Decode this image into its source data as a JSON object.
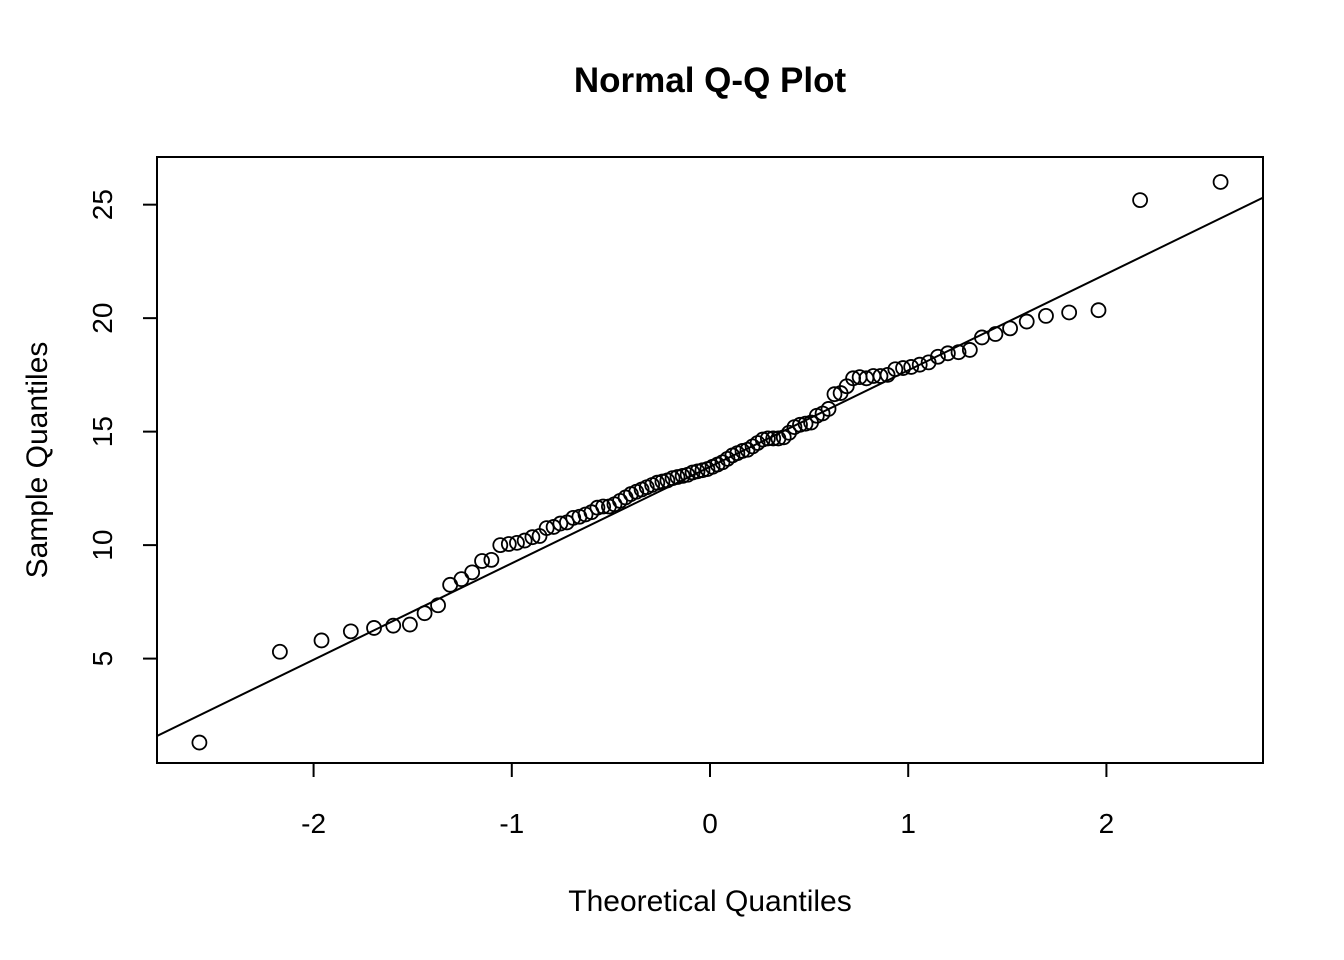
{
  "chart_data": {
    "type": "scatter",
    "title": "Normal Q-Q Plot",
    "xlabel": "Theoretical Quantiles",
    "ylabel": "Sample Quantiles",
    "xlim": [
      -2.79,
      2.79
    ],
    "ylim": [
      0.4,
      27.1
    ],
    "xticks": [
      -2,
      -1,
      0,
      1,
      2
    ],
    "yticks": [
      5,
      10,
      15,
      20,
      25
    ],
    "grid": false,
    "legend": "none",
    "marker": "open-circle",
    "color": "#000000",
    "reference_line": {
      "slope": 4.25,
      "intercept": 13.45
    },
    "x": [
      -2.576,
      -2.17,
      -1.96,
      -1.812,
      -1.695,
      -1.598,
      -1.514,
      -1.44,
      -1.372,
      -1.311,
      -1.254,
      -1.2,
      -1.15,
      -1.103,
      -1.058,
      -1.015,
      -0.974,
      -0.935,
      -0.896,
      -0.86,
      -0.824,
      -0.789,
      -0.755,
      -0.722,
      -0.69,
      -0.659,
      -0.628,
      -0.598,
      -0.568,
      -0.539,
      -0.51,
      -0.482,
      -0.454,
      -0.426,
      -0.399,
      -0.372,
      -0.345,
      -0.319,
      -0.292,
      -0.266,
      -0.24,
      -0.215,
      -0.189,
      -0.164,
      -0.138,
      -0.113,
      -0.088,
      -0.063,
      -0.038,
      -0.013,
      0.013,
      0.038,
      0.063,
      0.088,
      0.113,
      0.138,
      0.164,
      0.189,
      0.215,
      0.24,
      0.266,
      0.292,
      0.319,
      0.345,
      0.372,
      0.399,
      0.426,
      0.454,
      0.482,
      0.51,
      0.539,
      0.568,
      0.598,
      0.628,
      0.659,
      0.69,
      0.722,
      0.755,
      0.789,
      0.824,
      0.86,
      0.896,
      0.935,
      0.974,
      1.015,
      1.058,
      1.103,
      1.15,
      1.2,
      1.254,
      1.311,
      1.372,
      1.44,
      1.514,
      1.598,
      1.695,
      1.812,
      1.96,
      2.17,
      2.576
    ],
    "y": [
      1.3,
      5.3,
      5.8,
      6.2,
      6.35,
      6.45,
      6.5,
      7.0,
      7.35,
      8.25,
      8.5,
      8.8,
      9.3,
      9.35,
      10.0,
      10.05,
      10.1,
      10.2,
      10.35,
      10.4,
      10.75,
      10.8,
      10.95,
      11.0,
      11.2,
      11.25,
      11.35,
      11.45,
      11.65,
      11.7,
      11.7,
      11.8,
      11.95,
      12.1,
      12.25,
      12.35,
      12.45,
      12.55,
      12.65,
      12.75,
      12.8,
      12.85,
      12.95,
      13.0,
      13.05,
      13.1,
      13.2,
      13.25,
      13.3,
      13.35,
      13.45,
      13.55,
      13.65,
      13.8,
      13.95,
      14.05,
      14.15,
      14.2,
      14.35,
      14.5,
      14.65,
      14.7,
      14.7,
      14.7,
      14.75,
      14.95,
      15.2,
      15.3,
      15.35,
      15.4,
      15.7,
      15.8,
      16.0,
      16.65,
      16.7,
      17.0,
      17.35,
      17.4,
      17.35,
      17.45,
      17.45,
      17.5,
      17.75,
      17.8,
      17.85,
      17.95,
      18.05,
      18.3,
      18.45,
      18.5,
      18.6,
      19.15,
      19.3,
      19.55,
      19.85,
      20.1,
      20.25,
      20.35,
      25.2,
      26.0
    ]
  }
}
